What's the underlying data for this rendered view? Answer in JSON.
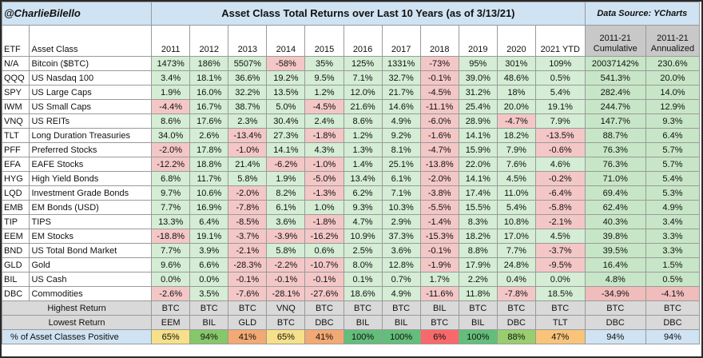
{
  "header": {
    "handle": "@CharlieBilello",
    "title": "Asset Class Total Returns over Last 10 Years (as of 3/13/21)",
    "source": "Data Source: YCharts"
  },
  "chart_data": {
    "type": "table",
    "columns": [
      "ETF",
      "Asset Class",
      "2011",
      "2012",
      "2013",
      "2014",
      "2015",
      "2016",
      "2017",
      "2018",
      "2019",
      "2020",
      "2021 YTD",
      "2011-21 Cumulative",
      "2011-21 Annualized"
    ],
    "col_top": [
      "",
      "",
      "",
      "",
      "",
      "",
      "",
      "",
      "",
      "",
      "",
      "",
      "",
      "2011-21",
      "2011-21"
    ],
    "col_bottom": [
      "ETF",
      "Asset Class",
      "2011",
      "2012",
      "2013",
      "2014",
      "2015",
      "2016",
      "2017",
      "2018",
      "2019",
      "2020",
      "2021 YTD",
      "Cumulative",
      "Annualized"
    ],
    "rows": [
      {
        "etf": "N/A",
        "name": "Bitcoin ($BTC)",
        "vals": [
          "1473%",
          "186%",
          "5507%",
          "-58%",
          "35%",
          "125%",
          "1331%",
          "-73%",
          "95%",
          "301%",
          "109%",
          "20037142%",
          "230.6%"
        ]
      },
      {
        "etf": "QQQ",
        "name": "US Nasdaq 100",
        "vals": [
          "3.4%",
          "18.1%",
          "36.6%",
          "19.2%",
          "9.5%",
          "7.1%",
          "32.7%",
          "-0.1%",
          "39.0%",
          "48.6%",
          "0.5%",
          "541.3%",
          "20.0%"
        ]
      },
      {
        "etf": "SPY",
        "name": "US Large Caps",
        "vals": [
          "1.9%",
          "16.0%",
          "32.2%",
          "13.5%",
          "1.2%",
          "12.0%",
          "21.7%",
          "-4.5%",
          "31.2%",
          "18%",
          "5.4%",
          "282.4%",
          "14.0%"
        ]
      },
      {
        "etf": "IWM",
        "name": "US Small Caps",
        "vals": [
          "-4.4%",
          "16.7%",
          "38.7%",
          "5.0%",
          "-4.5%",
          "21.6%",
          "14.6%",
          "-11.1%",
          "25.4%",
          "20.0%",
          "19.1%",
          "244.7%",
          "12.9%"
        ]
      },
      {
        "etf": "VNQ",
        "name": "US REITs",
        "vals": [
          "8.6%",
          "17.6%",
          "2.3%",
          "30.4%",
          "2.4%",
          "8.6%",
          "4.9%",
          "-6.0%",
          "28.9%",
          "-4.7%",
          "7.9%",
          "147.7%",
          "9.3%"
        ]
      },
      {
        "etf": "TLT",
        "name": "Long Duration Treasuries",
        "vals": [
          "34.0%",
          "2.6%",
          "-13.4%",
          "27.3%",
          "-1.8%",
          "1.2%",
          "9.2%",
          "-1.6%",
          "14.1%",
          "18.2%",
          "-13.5%",
          "88.7%",
          "6.4%"
        ]
      },
      {
        "etf": "PFF",
        "name": "Preferred Stocks",
        "vals": [
          "-2.0%",
          "17.8%",
          "-1.0%",
          "14.1%",
          "4.3%",
          "1.3%",
          "8.1%",
          "-4.7%",
          "15.9%",
          "7.9%",
          "-0.6%",
          "76.3%",
          "5.7%"
        ]
      },
      {
        "etf": "EFA",
        "name": "EAFE Stocks",
        "vals": [
          "-12.2%",
          "18.8%",
          "21.4%",
          "-6.2%",
          "-1.0%",
          "1.4%",
          "25.1%",
          "-13.8%",
          "22.0%",
          "7.6%",
          "4.6%",
          "76.3%",
          "5.7%"
        ]
      },
      {
        "etf": "HYG",
        "name": "High Yield Bonds",
        "vals": [
          "6.8%",
          "11.7%",
          "5.8%",
          "1.9%",
          "-5.0%",
          "13.4%",
          "6.1%",
          "-2.0%",
          "14.1%",
          "4.5%",
          "-0.2%",
          "71.0%",
          "5.4%"
        ]
      },
      {
        "etf": "LQD",
        "name": "Investment Grade Bonds",
        "vals": [
          "9.7%",
          "10.6%",
          "-2.0%",
          "8.2%",
          "-1.3%",
          "6.2%",
          "7.1%",
          "-3.8%",
          "17.4%",
          "11.0%",
          "-6.4%",
          "69.4%",
          "5.3%"
        ]
      },
      {
        "etf": "EMB",
        "name": "EM Bonds (USD)",
        "vals": [
          "7.7%",
          "16.9%",
          "-7.8%",
          "6.1%",
          "1.0%",
          "9.3%",
          "10.3%",
          "-5.5%",
          "15.5%",
          "5.4%",
          "-5.8%",
          "62.4%",
          "4.9%"
        ]
      },
      {
        "etf": "TIP",
        "name": "TIPS",
        "vals": [
          "13.3%",
          "6.4%",
          "-8.5%",
          "3.6%",
          "-1.8%",
          "4.7%",
          "2.9%",
          "-1.4%",
          "8.3%",
          "10.8%",
          "-2.1%",
          "40.3%",
          "3.4%"
        ]
      },
      {
        "etf": "EEM",
        "name": "EM Stocks",
        "vals": [
          "-18.8%",
          "19.1%",
          "-3.7%",
          "-3.9%",
          "-16.2%",
          "10.9%",
          "37.3%",
          "-15.3%",
          "18.2%",
          "17.0%",
          "4.5%",
          "39.8%",
          "3.3%"
        ]
      },
      {
        "etf": "BND",
        "name": "US Total Bond Market",
        "vals": [
          "7.7%",
          "3.9%",
          "-2.1%",
          "5.8%",
          "0.6%",
          "2.5%",
          "3.6%",
          "-0.1%",
          "8.8%",
          "7.7%",
          "-3.7%",
          "39.5%",
          "3.3%"
        ]
      },
      {
        "etf": "GLD",
        "name": "Gold",
        "vals": [
          "9.6%",
          "6.6%",
          "-28.3%",
          "-2.2%",
          "-10.7%",
          "8.0%",
          "12.8%",
          "-1.9%",
          "17.9%",
          "24.8%",
          "-9.5%",
          "16.4%",
          "1.5%"
        ]
      },
      {
        "etf": "BIL",
        "name": "US Cash",
        "vals": [
          "0.0%",
          "0.0%",
          "-0.1%",
          "-0.1%",
          "-0.1%",
          "0.1%",
          "0.7%",
          "1.7%",
          "2.2%",
          "0.4%",
          "0.0%",
          "4.8%",
          "0.5%"
        ]
      },
      {
        "etf": "DBC",
        "name": "Commodities",
        "vals": [
          "-2.6%",
          "3.5%",
          "-7.6%",
          "-28.1%",
          "-27.6%",
          "18.6%",
          "4.9%",
          "-11.6%",
          "11.8%",
          "-7.8%",
          "18.5%",
          "-34.9%",
          "-4.1%"
        ]
      }
    ],
    "summary": [
      {
        "label": "Highest Return",
        "vals": [
          "BTC",
          "BTC",
          "BTC",
          "VNQ",
          "BTC",
          "BTC",
          "BTC",
          "BIL",
          "BTC",
          "BTC",
          "BTC",
          "BTC",
          "BTC"
        ]
      },
      {
        "label": "Lowest Return",
        "vals": [
          "EEM",
          "BIL",
          "GLD",
          "BTC",
          "DBC",
          "BIL",
          "BIL",
          "BTC",
          "BIL",
          "DBC",
          "TLT",
          "DBC",
          "DBC"
        ]
      }
    ],
    "pct_positive": {
      "label": "% of Asset Classes Positive",
      "vals": [
        "65%",
        "94%",
        "41%",
        "65%",
        "41%",
        "100%",
        "100%",
        "6%",
        "100%",
        "88%",
        "47%",
        "94%",
        "94%"
      ],
      "colors": [
        "#f6e08a",
        "#86c76a",
        "#f2a973",
        "#f6e08a",
        "#f2a973",
        "#63be7b",
        "#63be7b",
        "#f8696b",
        "#63be7b",
        "#98ce6e",
        "#f7c47a",
        "#cfe3f3",
        "#cfe3f3"
      ]
    },
    "colors": {
      "positive": "#d4edd4",
      "negative": "#f4c7c7",
      "header": "#cfe3f3",
      "summary": "#d9d9d9",
      "gray_header": "#c8c8c8"
    }
  }
}
